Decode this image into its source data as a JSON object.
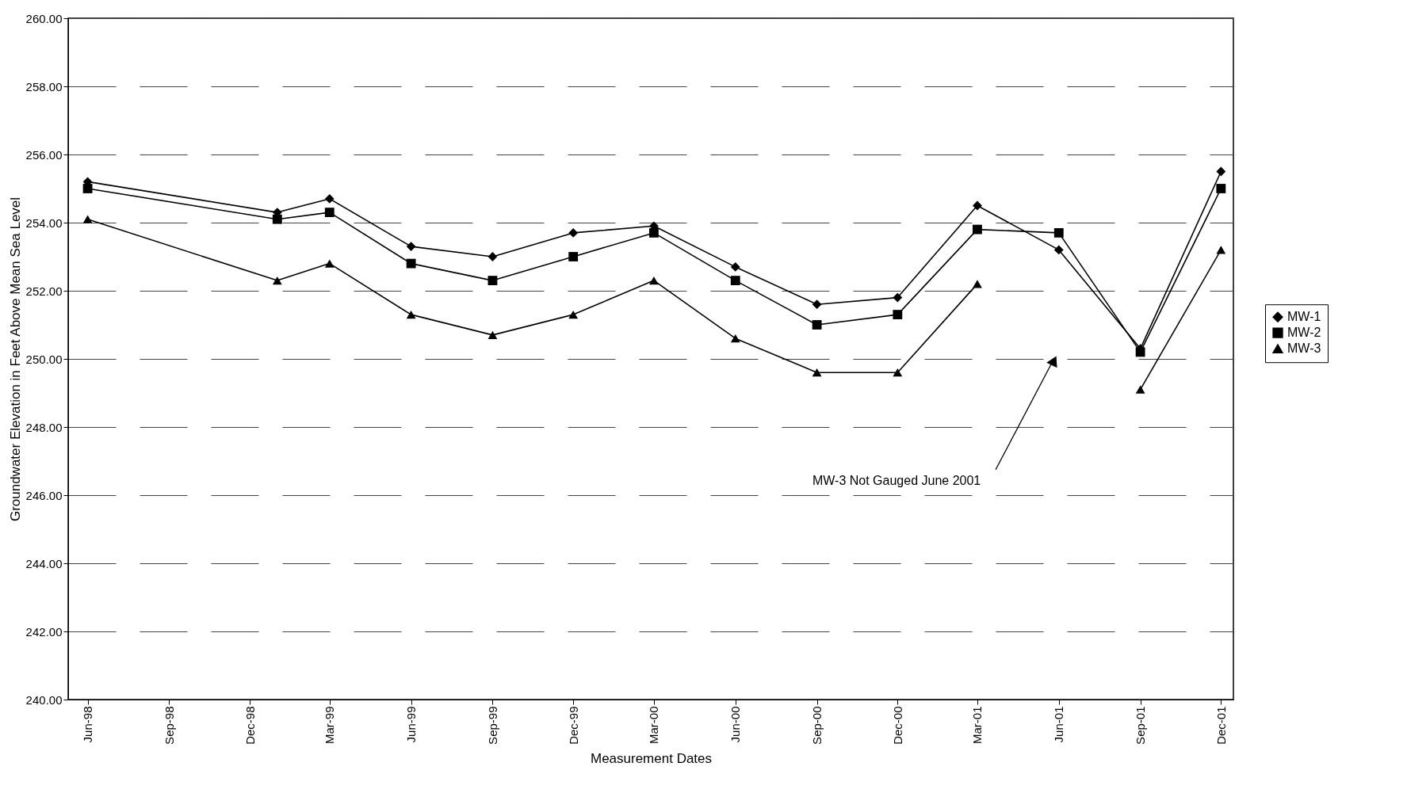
{
  "chart_data": {
    "type": "line",
    "xlabel": "Measurement Dates",
    "ylabel": "Groundwater Elevation in Feet Above Mean Sea Level",
    "x": [
      "1998-06",
      "1999-01",
      "1999-03",
      "1999-06",
      "1999-09",
      "1999-12",
      "2000-03",
      "2000-06",
      "2000-09",
      "2000-12",
      "2001-03",
      "2001-06",
      "2001-09",
      "2001-12"
    ],
    "series": [
      {
        "name": "MW-1",
        "color": "#000000",
        "marker": "diamond",
        "values": [
          255.2,
          254.3,
          254.7,
          253.3,
          253.0,
          253.7,
          253.9,
          252.7,
          251.6,
          251.8,
          254.5,
          253.2,
          250.3,
          255.5
        ]
      },
      {
        "name": "MW-2",
        "color": "#000000",
        "marker": "square",
        "values": [
          255.0,
          254.1,
          254.3,
          252.8,
          252.3,
          253.0,
          253.7,
          252.3,
          251.0,
          251.3,
          253.8,
          253.7,
          250.2,
          255.0
        ]
      },
      {
        "name": "MW-3",
        "color": "#000000",
        "marker": "triangle",
        "values": [
          254.1,
          252.3,
          252.8,
          251.3,
          250.7,
          251.3,
          252.3,
          250.6,
          249.6,
          249.6,
          252.2,
          null,
          249.1,
          253.2
        ]
      }
    ],
    "xlim": [
      "1998-05-10",
      "2001-12-15"
    ],
    "xticks": [
      {
        "value": "1998-06",
        "label": "Jun-98"
      },
      {
        "value": "1998-09",
        "label": "Sep-98"
      },
      {
        "value": "1998-12",
        "label": "Dec-98"
      },
      {
        "value": "1999-03",
        "label": "Mar-99"
      },
      {
        "value": "1999-06",
        "label": "Jun-99"
      },
      {
        "value": "1999-09",
        "label": "Sep-99"
      },
      {
        "value": "1999-12",
        "label": "Dec-99"
      },
      {
        "value": "2000-03",
        "label": "Mar-00"
      },
      {
        "value": "2000-06",
        "label": "Jun-00"
      },
      {
        "value": "2000-09",
        "label": "Sep-00"
      },
      {
        "value": "2000-12",
        "label": "Dec-00"
      },
      {
        "value": "2001-03",
        "label": "Mar-01"
      },
      {
        "value": "2001-06",
        "label": "Jun-01"
      },
      {
        "value": "2001-09",
        "label": "Sep-01"
      },
      {
        "value": "2001-12",
        "label": "Dec-01"
      }
    ],
    "ylim": [
      240,
      260
    ],
    "yticks": [
      {
        "value": 240,
        "label": "240.00"
      },
      {
        "value": 242,
        "label": "242.00"
      },
      {
        "value": 244,
        "label": "244.00"
      },
      {
        "value": 246,
        "label": "246.00"
      },
      {
        "value": 248,
        "label": "248.00"
      },
      {
        "value": 250,
        "label": "250.00"
      },
      {
        "value": 252,
        "label": "252.00"
      },
      {
        "value": 254,
        "label": "254.00"
      },
      {
        "value": 256,
        "label": "256.00"
      },
      {
        "value": 258,
        "label": "258.00"
      },
      {
        "value": 260,
        "label": "260.00"
      }
    ],
    "grid": "y",
    "legend": "right",
    "line_style": "solid",
    "annotations": [
      "MW-3 Not Gauged June 2001"
    ]
  }
}
